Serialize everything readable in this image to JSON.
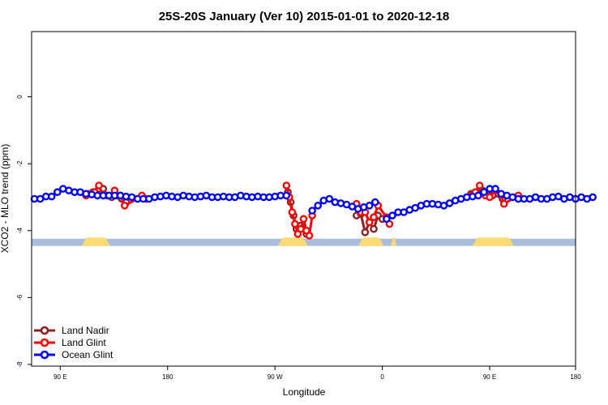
{
  "chart_data": {
    "type": "line",
    "title": "25S-20S January (Ver 10)   2015-01-01 to 2020-12-18",
    "xlabel": "Longitude",
    "ylabel": "XCO2 - MLO trend (ppm)",
    "xlim": [
      -200,
      180
    ],
    "ylim": [
      -8,
      2
    ],
    "xticks": [
      {
        "value": -180,
        "label": "90 E"
      },
      {
        "value": -105,
        "label": "180"
      },
      {
        "value": -30,
        "label": "90 W"
      },
      {
        "value": 45,
        "label": "0"
      },
      {
        "value": 120,
        "label": "90 E"
      },
      {
        "value": 195,
        "label": "180"
      }
    ],
    "yticks": [
      {
        "value": 0,
        "label": "0"
      },
      {
        "value": -2,
        "label": "-2"
      },
      {
        "value": -4,
        "label": "-4"
      },
      {
        "value": -6,
        "label": "-6"
      },
      {
        "value": -8,
        "label": "-8"
      }
    ],
    "grid": false,
    "legend_position": "bottom-left",
    "series": [
      {
        "name": "Land Nadir",
        "color": "#8B2323",
        "segments": [
          [
            [
              -160,
              -2.9
            ],
            [
              -157,
              -2.85
            ],
            [
              -153,
              -2.75
            ],
            [
              -150,
              -2.75
            ],
            [
              -147,
              -2.95
            ],
            [
              -144,
              -3.0
            ],
            [
              -140,
              -2.95
            ],
            [
              -137,
              -3.05
            ],
            [
              -134,
              -3.15
            ]
          ],
          [
            [
              -21,
              -2.85
            ],
            [
              -19,
              -3.15
            ],
            [
              -17,
              -3.55
            ],
            [
              -15,
              -3.95
            ],
            [
              -12,
              -3.85
            ],
            [
              -10,
              -3.95
            ],
            [
              -8,
              -4.1
            ]
          ],
          [
            [
              27,
              -3.55
            ],
            [
              30,
              -3.5
            ],
            [
              33,
              -4.05
            ],
            [
              36,
              -3.75
            ],
            [
              39,
              -3.95
            ],
            [
              42,
              -3.55
            ],
            [
              45,
              -3.65
            ]
          ],
          [
            [
              107,
              -2.9
            ],
            [
              111,
              -2.85
            ],
            [
              115,
              -2.8
            ],
            [
              118,
              -2.9
            ],
            [
              122,
              -2.95
            ],
            [
              126,
              -2.9
            ],
            [
              129,
              -3.05
            ]
          ]
        ]
      },
      {
        "name": "Land Glint",
        "color": "#FF0000",
        "segments": [
          [
            [
              -162,
              -2.95
            ],
            [
              -159,
              -2.9
            ],
            [
              -156,
              -2.85
            ],
            [
              -153,
              -2.65
            ],
            [
              -150,
              -2.95
            ],
            [
              -146,
              -2.95
            ],
            [
              -142,
              -2.8
            ],
            [
              -138,
              -2.95
            ],
            [
              -135,
              -3.25
            ],
            [
              -126,
              -3.05
            ],
            [
              -123,
              -2.95
            ],
            [
              -120,
              -3.05
            ]
          ],
          [
            [
              -22,
              -2.65
            ],
            [
              -20,
              -3.0
            ],
            [
              -18,
              -3.45
            ],
            [
              -16,
              -3.8
            ],
            [
              -14,
              -4.1
            ],
            [
              -12,
              -3.95
            ],
            [
              -10,
              -3.65
            ],
            [
              -8,
              -4.0
            ],
            [
              -6,
              -4.15
            ],
            [
              -4,
              -3.55
            ]
          ],
          [
            [
              27,
              -3.2
            ],
            [
              30,
              -3.45
            ],
            [
              33,
              -3.45
            ],
            [
              36,
              -3.75
            ],
            [
              39,
              -3.6
            ],
            [
              42,
              -3.25
            ],
            [
              48,
              -3.6
            ],
            [
              50,
              -3.8
            ]
          ],
          [
            [
              107,
              -2.95
            ],
            [
              110,
              -2.85
            ],
            [
              113,
              -2.65
            ],
            [
              117,
              -2.95
            ],
            [
              120,
              -3.0
            ],
            [
              124,
              -2.8
            ],
            [
              128,
              -2.95
            ],
            [
              130,
              -3.2
            ],
            [
              140,
              -2.95
            ]
          ]
        ]
      },
      {
        "name": "Ocean Glint",
        "color": "#0000FF",
        "segments": [
          [
            [
              -198,
              -3.05
            ],
            [
              -194,
              -3.05
            ],
            [
              -190,
              -2.98
            ],
            [
              -186,
              -2.98
            ],
            [
              -182,
              -2.85
            ],
            [
              -178,
              -2.75
            ],
            [
              -174,
              -2.8
            ],
            [
              -170,
              -2.85
            ],
            [
              -166,
              -2.85
            ],
            [
              -162,
              -2.9
            ],
            [
              -158,
              -2.92
            ],
            [
              -154,
              -2.95
            ],
            [
              -150,
              -2.95
            ],
            [
              -146,
              -2.95
            ],
            [
              -142,
              -2.95
            ],
            [
              -138,
              -2.95
            ],
            [
              -134,
              -2.98
            ],
            [
              -130,
              -3.0
            ],
            [
              -126,
              -3.05
            ],
            [
              -122,
              -3.05
            ],
            [
              -118,
              -3.05
            ],
            [
              -114,
              -3.0
            ],
            [
              -110,
              -2.98
            ],
            [
              -106,
              -2.95
            ],
            [
              -102,
              -2.98
            ],
            [
              -98,
              -3.0
            ],
            [
              -94,
              -2.95
            ],
            [
              -90,
              -2.98
            ],
            [
              -86,
              -3.0
            ],
            [
              -82,
              -2.98
            ],
            [
              -78,
              -2.95
            ],
            [
              -74,
              -3.0
            ],
            [
              -70,
              -3.0
            ],
            [
              -66,
              -2.98
            ],
            [
              -62,
              -3.0
            ],
            [
              -58,
              -3.0
            ],
            [
              -54,
              -2.95
            ],
            [
              -50,
              -2.98
            ],
            [
              -46,
              -3.0
            ],
            [
              -42,
              -2.98
            ],
            [
              -38,
              -3.0
            ],
            [
              -34,
              -3.0
            ],
            [
              -30,
              -2.98
            ],
            [
              -26,
              -2.95
            ],
            [
              -22,
              -2.95
            ]
          ],
          [
            [
              -4,
              -3.4
            ],
            [
              0,
              -3.25
            ],
            [
              4,
              -3.1
            ],
            [
              8,
              -3.05
            ],
            [
              12,
              -3.15
            ],
            [
              16,
              -3.18
            ],
            [
              20,
              -3.22
            ],
            [
              24,
              -3.28
            ],
            [
              28,
              -3.35
            ],
            [
              32,
              -3.3
            ],
            [
              36,
              -3.25
            ],
            [
              40,
              -3.15
            ]
          ],
          [
            [
              48,
              -3.65
            ],
            [
              52,
              -3.55
            ],
            [
              56,
              -3.45
            ],
            [
              60,
              -3.45
            ],
            [
              64,
              -3.38
            ],
            [
              68,
              -3.32
            ],
            [
              72,
              -3.25
            ],
            [
              76,
              -3.2
            ],
            [
              80,
              -3.2
            ],
            [
              84,
              -3.22
            ],
            [
              88,
              -3.25
            ],
            [
              92,
              -3.18
            ],
            [
              96,
              -3.1
            ],
            [
              100,
              -3.05
            ],
            [
              104,
              -3.0
            ],
            [
              108,
              -2.98
            ],
            [
              112,
              -2.95
            ],
            [
              116,
              -2.85
            ],
            [
              120,
              -2.75
            ],
            [
              124,
              -2.75
            ],
            [
              128,
              -2.9
            ],
            [
              132,
              -2.95
            ],
            [
              136,
              -3.0
            ],
            [
              140,
              -3.05
            ],
            [
              144,
              -3.05
            ],
            [
              148,
              -3.05
            ],
            [
              152,
              -3.0
            ],
            [
              156,
              -3.05
            ],
            [
              160,
              -3.05
            ],
            [
              164,
              -3.0
            ],
            [
              168,
              -2.98
            ],
            [
              172,
              -3.05
            ],
            [
              176,
              -3.0
            ],
            [
              180,
              -3.05
            ],
            [
              184,
              -3.0
            ],
            [
              188,
              -3.05
            ],
            [
              192,
              -3.0
            ]
          ]
        ]
      }
    ],
    "land_strip": {
      "y": -4.35,
      "ocean_color": "#A9BEDC",
      "land_color": "#FCDA74",
      "land_ranges": [
        [
          -165,
          -145
        ],
        [
          -28,
          -7
        ],
        [
          28,
          46
        ],
        [
          51,
          55
        ],
        [
          108,
          137
        ]
      ]
    }
  }
}
